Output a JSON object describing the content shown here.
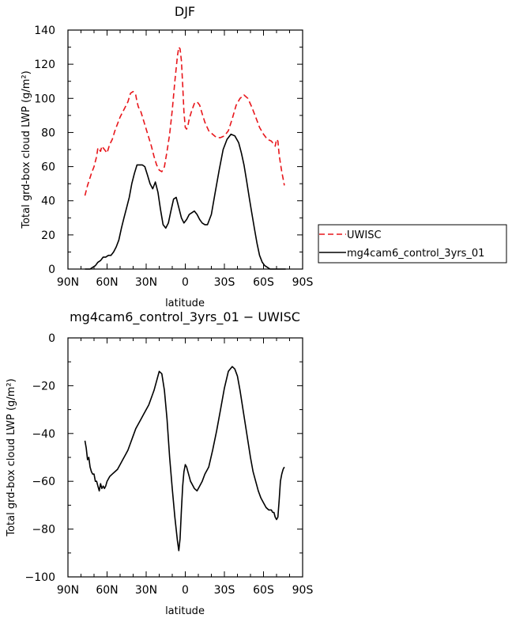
{
  "chart_data": [
    {
      "type": "line",
      "title": "DJF",
      "xlabel": "latitude",
      "ylabel": "Total grd-box cloud LWP (g/m²)",
      "xlim": [
        -90,
        90
      ],
      "ylim": [
        0,
        140
      ],
      "x_ticks": [
        -90,
        -60,
        -30,
        0,
        30,
        60,
        90
      ],
      "x_tick_labels": [
        "90N",
        "60N",
        "30N",
        "0",
        "30S",
        "60S",
        "90S"
      ],
      "y_ticks": [
        0,
        20,
        40,
        60,
        80,
        100,
        120,
        140
      ],
      "y_tick_labels": [
        "0",
        "20",
        "40",
        "60",
        "80",
        "100",
        "120",
        "140"
      ],
      "grid": false,
      "legend_position": "outside-right",
      "series": [
        {
          "name": "UWISC",
          "color": "#e8161b",
          "dash": "dashed",
          "x": [
            -77,
            -75,
            -72,
            -70,
            -68,
            -67,
            -65,
            -64,
            -62,
            -60,
            -58,
            -56,
            -54,
            -52,
            -50,
            -48,
            -46,
            -44,
            -42,
            -40,
            -38,
            -37,
            -36,
            -34,
            -32,
            -30,
            -28,
            -26,
            -24,
            -22,
            -20,
            -18,
            -16,
            -14,
            -12,
            -10,
            -8,
            -6,
            -5,
            -4,
            -3,
            -2,
            -1,
            0,
            1,
            2,
            3,
            5,
            7,
            9,
            11,
            13,
            15,
            18,
            21,
            24,
            27,
            30,
            33,
            36,
            39,
            42,
            45,
            48,
            51,
            54,
            57,
            60,
            63,
            66,
            68,
            69,
            70,
            71,
            72,
            73,
            74,
            75,
            76
          ],
          "values": [
            43,
            49,
            56,
            60,
            66,
            71,
            69,
            72,
            70,
            68,
            73,
            76,
            81,
            85,
            89,
            92,
            95,
            98,
            103,
            104,
            102,
            98,
            95,
            92,
            87,
            82,
            77,
            72,
            66,
            61,
            58,
            57,
            60,
            69,
            79,
            93,
            110,
            125,
            130,
            129,
            122,
            108,
            92,
            83,
            82,
            84,
            88,
            93,
            97,
            98,
            96,
            91,
            86,
            81,
            79,
            77,
            77,
            78,
            81,
            88,
            96,
            100,
            102,
            100,
            95,
            89,
            83,
            79,
            76,
            75,
            73,
            72,
            76,
            75,
            67,
            62,
            57,
            53,
            49
          ]
        },
        {
          "name": "mg4cam6_control_3yrs_01",
          "color": "#000000",
          "dash": "solid",
          "x": [
            -77,
            -75,
            -73,
            -71,
            -69,
            -67,
            -65,
            -63,
            -61,
            -59,
            -57,
            -55,
            -53,
            -51,
            -49,
            -47,
            -45,
            -43,
            -41,
            -39,
            -37,
            -35,
            -33,
            -31,
            -29,
            -27,
            -25,
            -23,
            -21,
            -19,
            -17,
            -15,
            -13,
            -11,
            -9,
            -7,
            -5,
            -3,
            -1,
            1,
            3,
            5,
            7,
            9,
            11,
            13,
            15,
            17,
            20,
            23,
            26,
            29,
            32,
            35,
            38,
            41,
            43,
            45,
            47,
            49,
            51,
            53,
            55,
            57,
            59,
            61,
            63,
            65,
            67,
            69,
            71,
            73,
            75,
            77
          ],
          "values": [
            0,
            0,
            0,
            1,
            2,
            4,
            5,
            7,
            7,
            8,
            8,
            10,
            13,
            17,
            24,
            30,
            36,
            42,
            50,
            56,
            61,
            61,
            61,
            60,
            55,
            50,
            47,
            51,
            45,
            35,
            26,
            24,
            27,
            34,
            41,
            42,
            36,
            30,
            27,
            29,
            32,
            33,
            34,
            32,
            29,
            27,
            26,
            26,
            32,
            45,
            58,
            70,
            76,
            79,
            78,
            74,
            68,
            61,
            52,
            42,
            33,
            24,
            15,
            8,
            4,
            2,
            1,
            0,
            0,
            0,
            0,
            0,
            0,
            0
          ]
        }
      ]
    },
    {
      "type": "line",
      "title": "mg4cam6_control_3yrs_01 − UWISC",
      "xlabel": "latitude",
      "ylabel": "Total grd-box cloud LWP (g/m²)",
      "xlim": [
        -90,
        90
      ],
      "ylim": [
        -100,
        0
      ],
      "x_ticks": [
        -90,
        -60,
        -30,
        0,
        30,
        60,
        90
      ],
      "x_tick_labels": [
        "90N",
        "60N",
        "30N",
        "0",
        "30S",
        "60S",
        "90S"
      ],
      "y_ticks": [
        -100,
        -80,
        -60,
        -40,
        -20,
        0
      ],
      "y_tick_labels": [
        "−100",
        "−80",
        "−60",
        "−40",
        "−20",
        "0"
      ],
      "grid": false,
      "series": [
        {
          "color": "#000000",
          "dash": "solid",
          "x": [
            -77,
            -76,
            -75,
            -74,
            -73,
            -72,
            -71,
            -70,
            -69,
            -68,
            -67,
            -66,
            -65,
            -64,
            -63,
            -62,
            -61,
            -60,
            -58,
            -56,
            -54,
            -52,
            -50,
            -48,
            -46,
            -44,
            -42,
            -40,
            -38,
            -36,
            -34,
            -32,
            -30,
            -28,
            -26,
            -24,
            -22,
            -20,
            -18,
            -16,
            -14,
            -12,
            -10,
            -8,
            -6,
            -5,
            -4,
            -3,
            -2,
            -1,
            0,
            1,
            2,
            3,
            4,
            5,
            7,
            9,
            11,
            13,
            15,
            18,
            21,
            24,
            27,
            30,
            33,
            36,
            38,
            40,
            42,
            44,
            46,
            48,
            50,
            52,
            54,
            56,
            58,
            60,
            62,
            64,
            66,
            67,
            68,
            69,
            70,
            71,
            72,
            73,
            74,
            75,
            76
          ],
          "values": [
            -43,
            -46,
            -51,
            -50,
            -54,
            -56,
            -57,
            -57,
            -60,
            -60,
            -62,
            -64,
            -61,
            -63,
            -62,
            -63,
            -62,
            -60,
            -58,
            -57,
            -56,
            -55,
            -53,
            -51,
            -49,
            -47,
            -44,
            -41,
            -38,
            -36,
            -34,
            -32,
            -30,
            -28,
            -25,
            -22,
            -18,
            -14,
            -15,
            -22,
            -34,
            -50,
            -63,
            -75,
            -85,
            -89,
            -84,
            -72,
            -62,
            -56,
            -53,
            -54,
            -56,
            -58,
            -60,
            -61,
            -63,
            -64,
            -62,
            -60,
            -57,
            -54,
            -47,
            -39,
            -30,
            -21,
            -14,
            -12,
            -13,
            -16,
            -22,
            -29,
            -36,
            -43,
            -50,
            -56,
            -60,
            -64,
            -67,
            -69,
            -71,
            -72,
            -72,
            -73,
            -73,
            -75,
            -76,
            -75,
            -68,
            -60,
            -57,
            -55,
            -54
          ]
        }
      ]
    }
  ]
}
